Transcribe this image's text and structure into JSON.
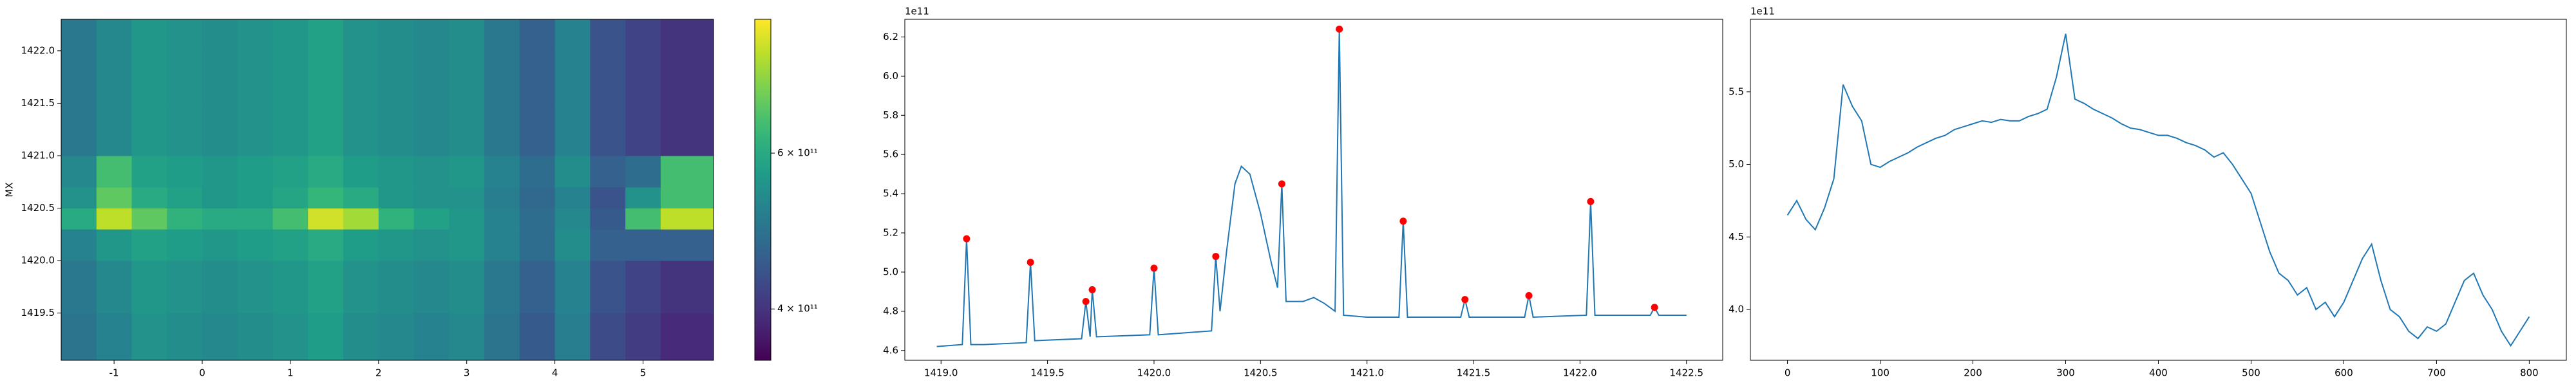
{
  "chart_data": [
    {
      "type": "heatmap",
      "y_label": "MX",
      "colormap": "viridis",
      "color_scale": "log",
      "xbins": [
        -1.6,
        -1.2,
        -0.8,
        -0.4,
        0,
        0.4,
        0.8,
        1.2,
        1.6,
        2.0,
        2.4,
        2.8,
        3.2,
        3.6,
        4.0,
        4.4,
        4.8,
        5.2,
        5.8
      ],
      "ybins": [
        1419.05,
        1419.5,
        1420.0,
        1420.3,
        1420.5,
        1420.7,
        1421.0,
        1421.5,
        1422.0,
        1422.3
      ],
      "z": [
        [
          490000000000.0,
          520000000000.0,
          550000000000.0,
          540000000000.0,
          530000000000.0,
          540000000000.0,
          550000000000.0,
          570000000000.0,
          540000000000.0,
          530000000000.0,
          520000000000.0,
          530000000000.0,
          490000000000.0,
          450000000000.0,
          510000000000.0,
          430000000000.0,
          410000000000.0,
          390000000000.0
        ],
        [
          500000000000.0,
          530000000000.0,
          560000000000.0,
          550000000000.0,
          540000000000.0,
          550000000000.0,
          560000000000.0,
          580000000000.0,
          550000000000.0,
          540000000000.0,
          530000000000.0,
          540000000000.0,
          500000000000.0,
          460000000000.0,
          520000000000.0,
          440000000000.0,
          420000000000.0,
          400000000000.0
        ],
        [
          520000000000.0,
          560000000000.0,
          580000000000.0,
          570000000000.0,
          560000000000.0,
          570000000000.0,
          580000000000.0,
          600000000000.0,
          570000000000.0,
          560000000000.0,
          550000000000.0,
          560000000000.0,
          520000000000.0,
          480000000000.0,
          540000000000.0,
          460000000000.0,
          460000000000.0,
          460000000000.0
        ],
        [
          600000000000.0,
          780000000000.0,
          680000000000.0,
          620000000000.0,
          600000000000.0,
          600000000000.0,
          650000000000.0,
          800000000000.0,
          750000000000.0,
          620000000000.0,
          580000000000.0,
          560000000000.0,
          520000000000.0,
          480000000000.0,
          530000000000.0,
          450000000000.0,
          650000000000.0,
          780000000000.0
        ],
        [
          550000000000.0,
          680000000000.0,
          600000000000.0,
          580000000000.0,
          560000000000.0,
          570000000000.0,
          590000000000.0,
          630000000000.0,
          600000000000.0,
          560000000000.0,
          550000000000.0,
          550000000000.0,
          510000000000.0,
          470000000000.0,
          520000000000.0,
          440000000000.0,
          550000000000.0,
          650000000000.0
        ],
        [
          530000000000.0,
          650000000000.0,
          580000000000.0,
          570000000000.0,
          560000000000.0,
          570000000000.0,
          580000000000.0,
          600000000000.0,
          570000000000.0,
          560000000000.0,
          550000000000.0,
          560000000000.0,
          520000000000.0,
          480000000000.0,
          540000000000.0,
          460000000000.0,
          480000000000.0,
          650000000000.0
        ],
        [
          500000000000.0,
          530000000000.0,
          560000000000.0,
          550000000000.0,
          540000000000.0,
          550000000000.0,
          560000000000.0,
          580000000000.0,
          550000000000.0,
          540000000000.0,
          530000000000.0,
          540000000000.0,
          500000000000.0,
          460000000000.0,
          520000000000.0,
          440000000000.0,
          420000000000.0,
          400000000000.0
        ],
        [
          500000000000.0,
          530000000000.0,
          560000000000.0,
          550000000000.0,
          540000000000.0,
          550000000000.0,
          560000000000.0,
          580000000000.0,
          550000000000.0,
          540000000000.0,
          530000000000.0,
          540000000000.0,
          500000000000.0,
          460000000000.0,
          520000000000.0,
          440000000000.0,
          420000000000.0,
          400000000000.0
        ],
        [
          500000000000.0,
          530000000000.0,
          560000000000.0,
          550000000000.0,
          540000000000.0,
          550000000000.0,
          560000000000.0,
          580000000000.0,
          550000000000.0,
          540000000000.0,
          530000000000.0,
          540000000000.0,
          500000000000.0,
          460000000000.0,
          520000000000.0,
          440000000000.0,
          420000000000.0,
          400000000000.0
        ]
      ],
      "xlim": [
        -1.6,
        5.8
      ],
      "ylim": [
        1419.05,
        1422.3
      ],
      "xticks": [
        -1,
        0,
        1,
        2,
        3,
        4,
        5
      ],
      "yticks": [
        1419.5,
        {
          "value": 1420.0,
          "label": "1420.0"
        },
        1420.5,
        {
          "value": 1421.0,
          "label": "1421.0"
        },
        1421.5,
        {
          "value": 1422.0,
          "label": "1422.0"
        }
      ],
      "clim": [
        350000000000.0,
        850000000000.0
      ],
      "cticks": [
        {
          "value": 400000000000.0,
          "label": "4 × 10¹¹"
        },
        {
          "value": 600000000000.0,
          "label": "6 × 10¹¹"
        }
      ]
    },
    {
      "type": "line",
      "offset_label": "1e11",
      "x": [
        1418.98,
        1419.1,
        1419.12,
        1419.14,
        1419.2,
        1419.4,
        1419.42,
        1419.44,
        1419.66,
        1419.68,
        1419.7,
        1419.71,
        1419.73,
        1419.98,
        1420.0,
        1420.02,
        1420.27,
        1420.29,
        1420.31,
        1420.34,
        1420.38,
        1420.41,
        1420.45,
        1420.5,
        1420.55,
        1420.58,
        1420.6,
        1420.62,
        1420.7,
        1420.75,
        1420.8,
        1420.85,
        1420.87,
        1420.89,
        1421.0,
        1421.15,
        1421.17,
        1421.19,
        1421.44,
        1421.46,
        1421.48,
        1421.74,
        1421.76,
        1421.78,
        1422.03,
        1422.05,
        1422.07,
        1422.33,
        1422.35,
        1422.37,
        1422.5
      ],
      "series": [
        {
          "color": "#1f77b4",
          "values": [
            4.62,
            4.63,
            5.17,
            4.63,
            4.63,
            4.64,
            5.05,
            4.65,
            4.66,
            4.85,
            4.67,
            4.91,
            4.67,
            4.68,
            5.02,
            4.68,
            4.7,
            5.08,
            4.8,
            5.1,
            5.45,
            5.54,
            5.5,
            5.3,
            5.05,
            4.92,
            5.45,
            4.85,
            4.85,
            4.87,
            4.84,
            4.8,
            6.24,
            4.78,
            4.77,
            4.77,
            5.26,
            4.77,
            4.77,
            4.86,
            4.77,
            4.77,
            4.88,
            4.77,
            4.78,
            5.36,
            4.78,
            4.78,
            4.82,
            4.78,
            4.78
          ]
        }
      ],
      "markers": {
        "color": "red",
        "x": [
          1419.12,
          1419.42,
          1419.68,
          1419.71,
          1420.0,
          1420.29,
          1420.6,
          1420.87,
          1421.17,
          1421.46,
          1421.76,
          1422.05,
          1422.35
        ],
        "values": [
          5.17,
          5.05,
          4.85,
          4.91,
          5.02,
          5.08,
          5.45,
          6.24,
          5.26,
          4.86,
          4.88,
          5.36,
          4.82
        ]
      },
      "xlim": [
        1418.83,
        1422.67
      ],
      "ylim": [
        4.55,
        6.29
      ],
      "xticks": [
        {
          "value": 1419.0,
          "label": "1419.0"
        },
        1419.5,
        {
          "value": 1420.0,
          "label": "1420.0"
        },
        1420.5,
        {
          "value": 1421.0,
          "label": "1421.0"
        },
        1421.5,
        {
          "value": 1422.0,
          "label": "1422.0"
        },
        1422.5
      ],
      "yticks": [
        4.6,
        4.8,
        {
          "value": 5.0,
          "label": "5.0"
        },
        5.2,
        5.4,
        5.6,
        5.8,
        {
          "value": 6.0,
          "label": "6.0"
        },
        6.2
      ]
    },
    {
      "type": "line",
      "offset_label": "1e11",
      "x": [
        0,
        10,
        20,
        30,
        40,
        50,
        60,
        70,
        80,
        90,
        100,
        110,
        120,
        130,
        140,
        150,
        160,
        170,
        180,
        190,
        200,
        210,
        220,
        230,
        240,
        250,
        260,
        270,
        280,
        290,
        300,
        310,
        320,
        330,
        340,
        350,
        360,
        370,
        380,
        390,
        400,
        410,
        420,
        430,
        440,
        450,
        460,
        470,
        480,
        490,
        500,
        510,
        520,
        530,
        540,
        550,
        560,
        570,
        580,
        590,
        600,
        610,
        620,
        630,
        640,
        650,
        660,
        670,
        680,
        690,
        700,
        710,
        720,
        730,
        740,
        750,
        760,
        770,
        780,
        790,
        800
      ],
      "series": [
        {
          "color": "#1f77b4",
          "values": [
            4.65,
            4.75,
            4.62,
            4.55,
            4.7,
            4.9,
            5.55,
            5.4,
            5.3,
            5.0,
            4.98,
            5.02,
            5.05,
            5.08,
            5.12,
            5.15,
            5.18,
            5.2,
            5.24,
            5.26,
            5.28,
            5.3,
            5.29,
            5.31,
            5.3,
            5.3,
            5.33,
            5.35,
            5.38,
            5.6,
            5.9,
            5.45,
            5.42,
            5.38,
            5.35,
            5.32,
            5.28,
            5.25,
            5.24,
            5.22,
            5.2,
            5.2,
            5.18,
            5.15,
            5.13,
            5.1,
            5.05,
            5.08,
            5.0,
            4.9,
            4.8,
            4.6,
            4.4,
            4.25,
            4.2,
            4.1,
            4.15,
            4.0,
            4.05,
            3.95,
            4.05,
            4.2,
            4.35,
            4.45,
            4.2,
            4.0,
            3.95,
            3.85,
            3.8,
            3.88,
            3.85,
            3.9,
            4.05,
            4.2,
            4.25,
            4.1,
            4.0,
            3.85,
            3.75,
            3.85,
            3.95
          ]
        }
      ],
      "xlim": [
        -40,
        840
      ],
      "ylim": [
        3.65,
        6.0
      ],
      "xticks": [
        0,
        100,
        200,
        300,
        400,
        500,
        600,
        700,
        800
      ],
      "yticks": [
        {
          "value": 4.0,
          "label": "4.0"
        },
        4.5,
        {
          "value": 5.0,
          "label": "5.0"
        },
        5.5
      ]
    }
  ]
}
